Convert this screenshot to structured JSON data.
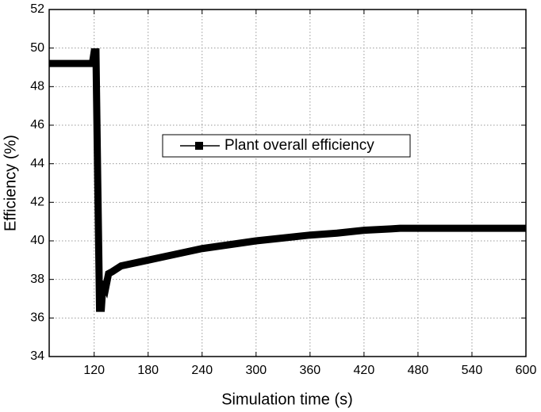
{
  "chart_data": {
    "type": "line",
    "x_label": "Simulation time (s)",
    "y_label": "Efficiency (%)",
    "xlim": [
      70,
      600
    ],
    "xticks": [
      120,
      180,
      240,
      300,
      360,
      420,
      480,
      540,
      600
    ],
    "ylim": [
      34,
      52
    ],
    "yticks": [
      34,
      36,
      38,
      40,
      42,
      44,
      46,
      48,
      50,
      52
    ],
    "grid": true,
    "legend": "center",
    "series": [
      {
        "name": "Plant overall efficiency",
        "color": "#000000",
        "x": [
          70,
          118,
          120,
          122,
          124,
          126,
          128,
          130,
          133,
          136,
          140,
          150,
          180,
          210,
          240,
          270,
          300,
          330,
          360,
          390,
          420,
          450,
          460,
          500,
          550,
          600
        ],
        "values": [
          49.2,
          49.2,
          49.8,
          49.8,
          43,
          36.5,
          36.5,
          37.9,
          37.6,
          38.3,
          38.4,
          38.7,
          39.0,
          39.3,
          39.6,
          39.8,
          40.0,
          40.15,
          40.3,
          40.4,
          40.55,
          40.62,
          40.65,
          40.65,
          40.65,
          40.65
        ]
      }
    ]
  }
}
